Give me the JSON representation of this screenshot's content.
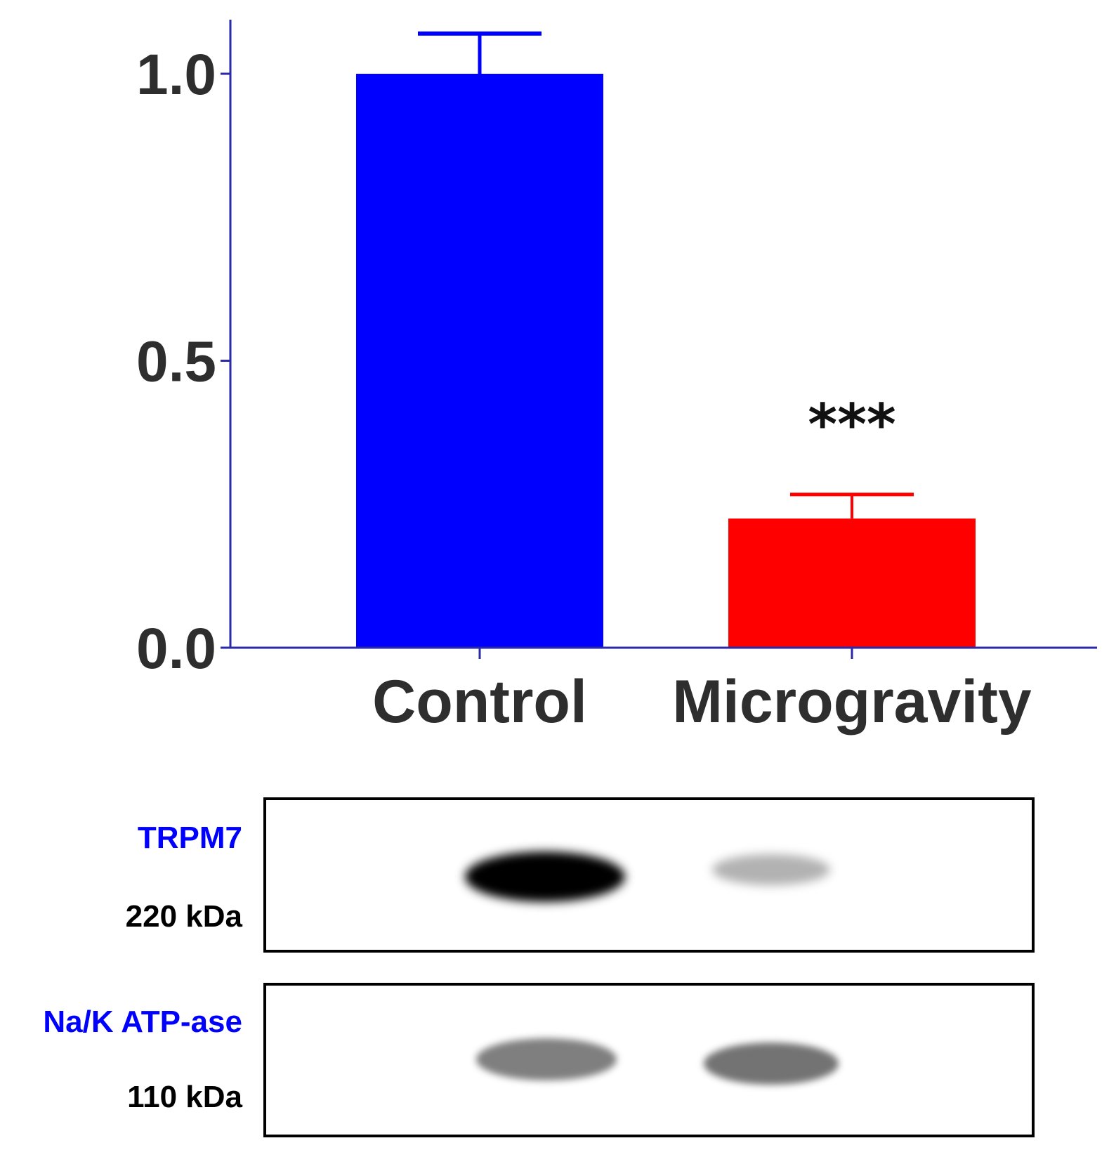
{
  "chart_data": {
    "type": "bar",
    "categories": [
      "Control",
      "Microgravity"
    ],
    "values": [
      1.0,
      0.225
    ],
    "errors": [
      0.07,
      0.042
    ],
    "colors": [
      "#0000ff",
      "#ff0000"
    ],
    "ylim": [
      0,
      1.0
    ],
    "yticks": [
      "0.0",
      "0.5",
      "1.0"
    ],
    "significance": [
      "",
      "***"
    ],
    "axis_color": "#2a2aa8",
    "grid": false
  },
  "blot": {
    "panels": [
      {
        "protein": "TRPM7",
        "protein_color": "#0000ff",
        "weight": "220 kDa",
        "band_intensity": [
          1.0,
          0.3
        ]
      },
      {
        "protein": "Na/K ATP-ase",
        "protein_color": "#0000ff",
        "weight": "110 kDa",
        "band_intensity": [
          0.5,
          0.55
        ]
      }
    ]
  }
}
